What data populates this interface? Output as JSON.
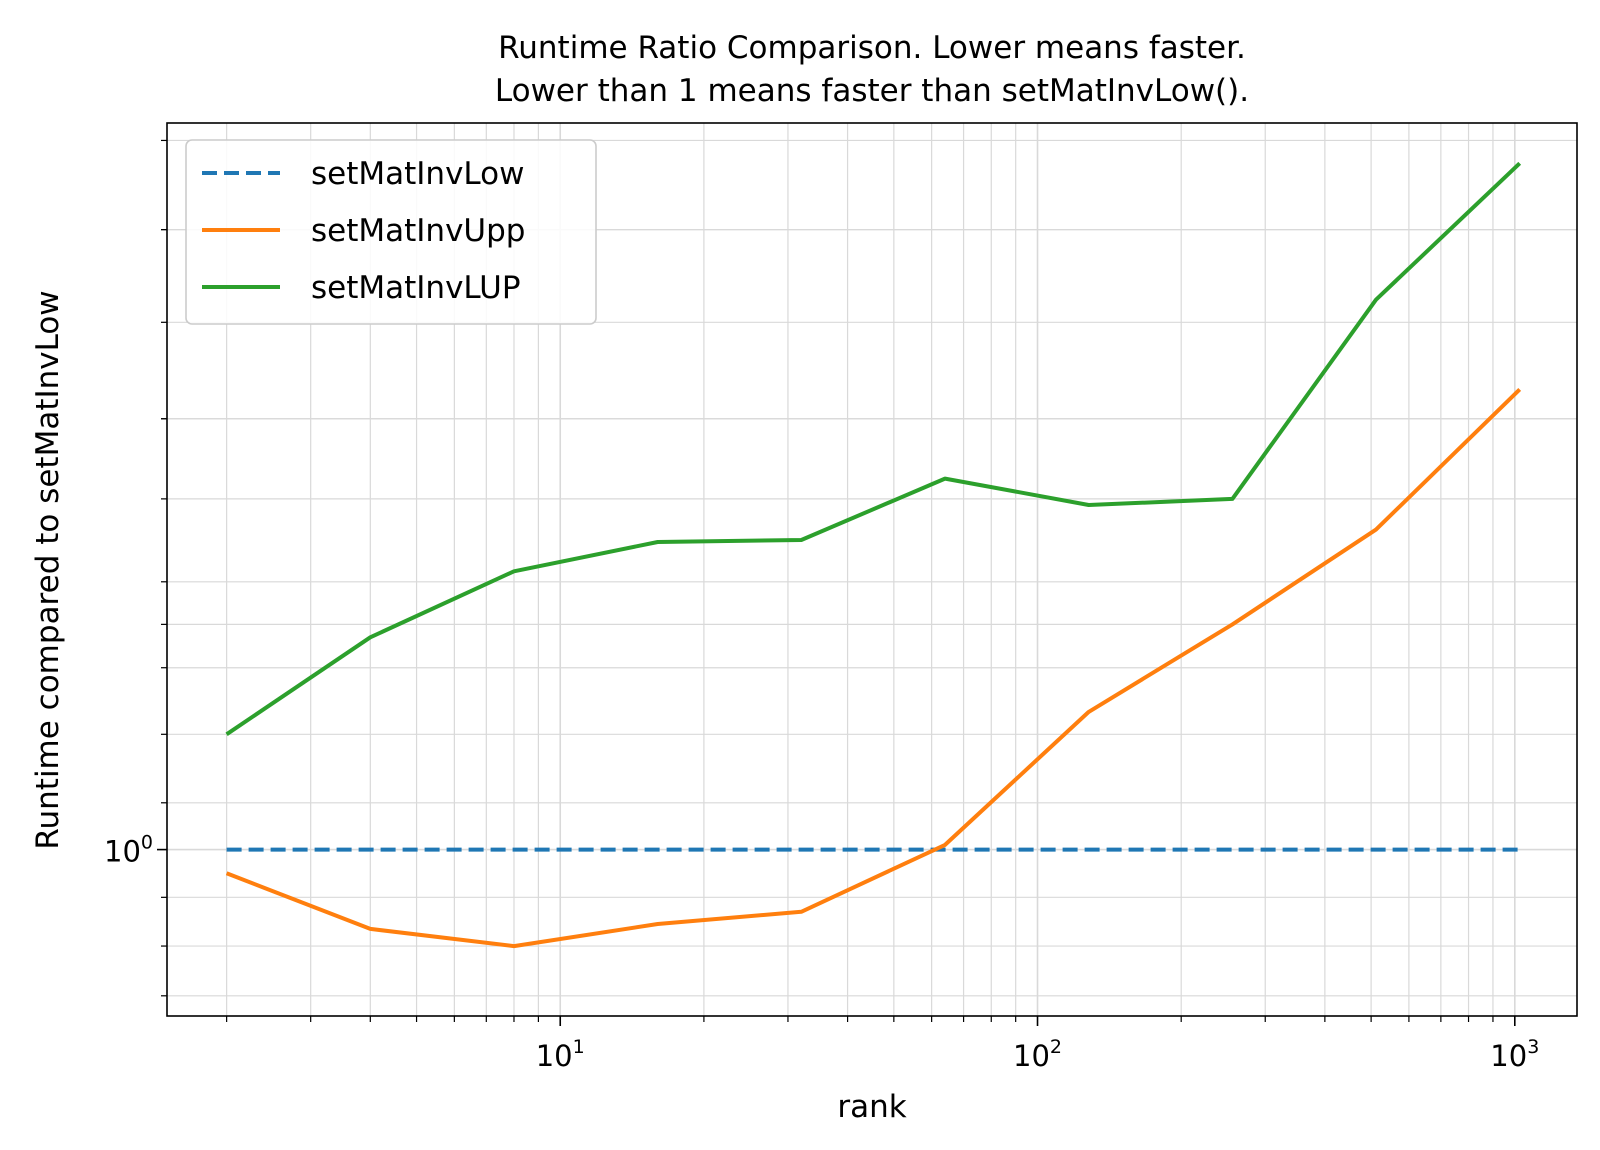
{
  "chart_data": {
    "type": "line",
    "title": [
      "Runtime Ratio Comparison. Lower means faster.",
      "Lower than 1 means faster than setMatInvLow()."
    ],
    "xlabel": "rank",
    "ylabel": "Runtime compared to setMatInvLow",
    "xscale": "log",
    "yscale": "log",
    "xlim": [
      1.5,
      1350
    ],
    "ylim": [
      0.932,
      1.36
    ],
    "grid": "major and minor",
    "legend_position": "top-left",
    "x": [
      2,
      4,
      8,
      16,
      32,
      64,
      128,
      256,
      512,
      1024
    ],
    "xticks": [
      {
        "value": 10,
        "base": "10",
        "exp": "1"
      },
      {
        "value": 100,
        "base": "10",
        "exp": "2"
      },
      {
        "value": 1000,
        "base": "10",
        "exp": "3"
      }
    ],
    "yticks": [
      {
        "value": 1,
        "base": "10",
        "exp": "0"
      }
    ],
    "series": [
      {
        "name": "setMatInvLow",
        "color": "#1f77b4",
        "dash": true,
        "values": [
          1,
          1,
          1,
          1,
          1,
          1,
          1,
          1,
          1,
          1
        ]
      },
      {
        "name": "setMatInvUpp",
        "color": "#ff7f0e",
        "dash": false,
        "values": [
          0.99,
          0.967,
          0.96,
          0.969,
          0.974,
          1.002,
          1.06,
          1.1,
          1.145,
          1.215
        ]
      },
      {
        "name": "setMatInvLUP",
        "color": "#2ca02c",
        "dash": false,
        "values": [
          1.05,
          1.094,
          1.125,
          1.139,
          1.14,
          1.17,
          1.157,
          1.16,
          1.262,
          1.337
        ]
      }
    ]
  }
}
